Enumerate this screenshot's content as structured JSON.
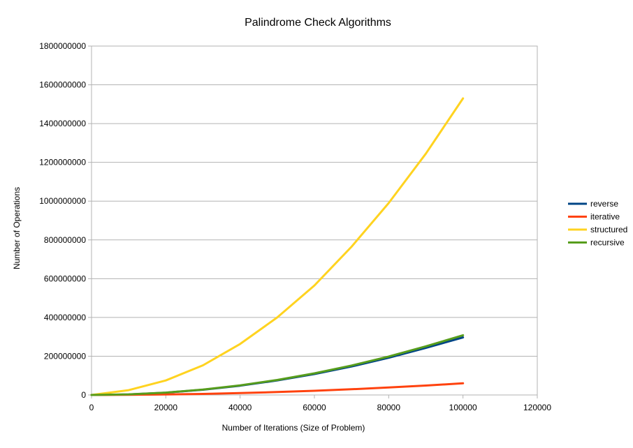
{
  "chart_data": {
    "type": "line",
    "title": "Palindrome Check Algorithms",
    "xlabel": "Number of Iterations (Size of Problem)",
    "ylabel": "Number of Operations",
    "xlim": [
      0,
      120000
    ],
    "ylim": [
      0,
      1800000000
    ],
    "x_ticks": [
      0,
      20000,
      40000,
      60000,
      80000,
      100000,
      120000
    ],
    "y_ticks": [
      0,
      200000000,
      400000000,
      600000000,
      800000000,
      1000000000,
      1200000000,
      1400000000,
      1600000000,
      1800000000
    ],
    "x_tick_labels": [
      "0",
      "20000",
      "40000",
      "60000",
      "80000",
      "100000",
      "120000"
    ],
    "y_tick_labels": [
      "0",
      "200000000",
      "400000000",
      "600000000",
      "800000000",
      "1000000000",
      "1200000000",
      "1400000000",
      "1600000000",
      "1800000000"
    ],
    "grid": "horizontal",
    "legend_position": "right",
    "x": [
      0,
      10000,
      20000,
      30000,
      40000,
      50000,
      60000,
      70000,
      80000,
      90000,
      100000
    ],
    "series": [
      {
        "name": "reverse",
        "color": "#004586",
        "values": [
          0,
          3000000,
          12000000,
          27000000,
          48000000,
          75000000,
          108000000,
          147000000,
          192000000,
          243000000,
          297000000
        ]
      },
      {
        "name": "iterative",
        "color": "#ff420e",
        "values": [
          0,
          600000,
          2400000,
          5400000,
          9600000,
          15000000,
          21600000,
          29400000,
          38400000,
          48600000,
          60000000
        ]
      },
      {
        "name": "structured",
        "color": "#ffd320",
        "values": [
          0,
          25000000,
          75000000,
          153000000,
          263000000,
          400000000,
          565000000,
          765000000,
          990000000,
          1245000000,
          1530000000
        ]
      },
      {
        "name": "recursive",
        "color": "#579d1c",
        "values": [
          0,
          3100000,
          12400000,
          27900000,
          49600000,
          77500000,
          111600000,
          151900000,
          198400000,
          251100000,
          308000000
        ]
      }
    ]
  }
}
